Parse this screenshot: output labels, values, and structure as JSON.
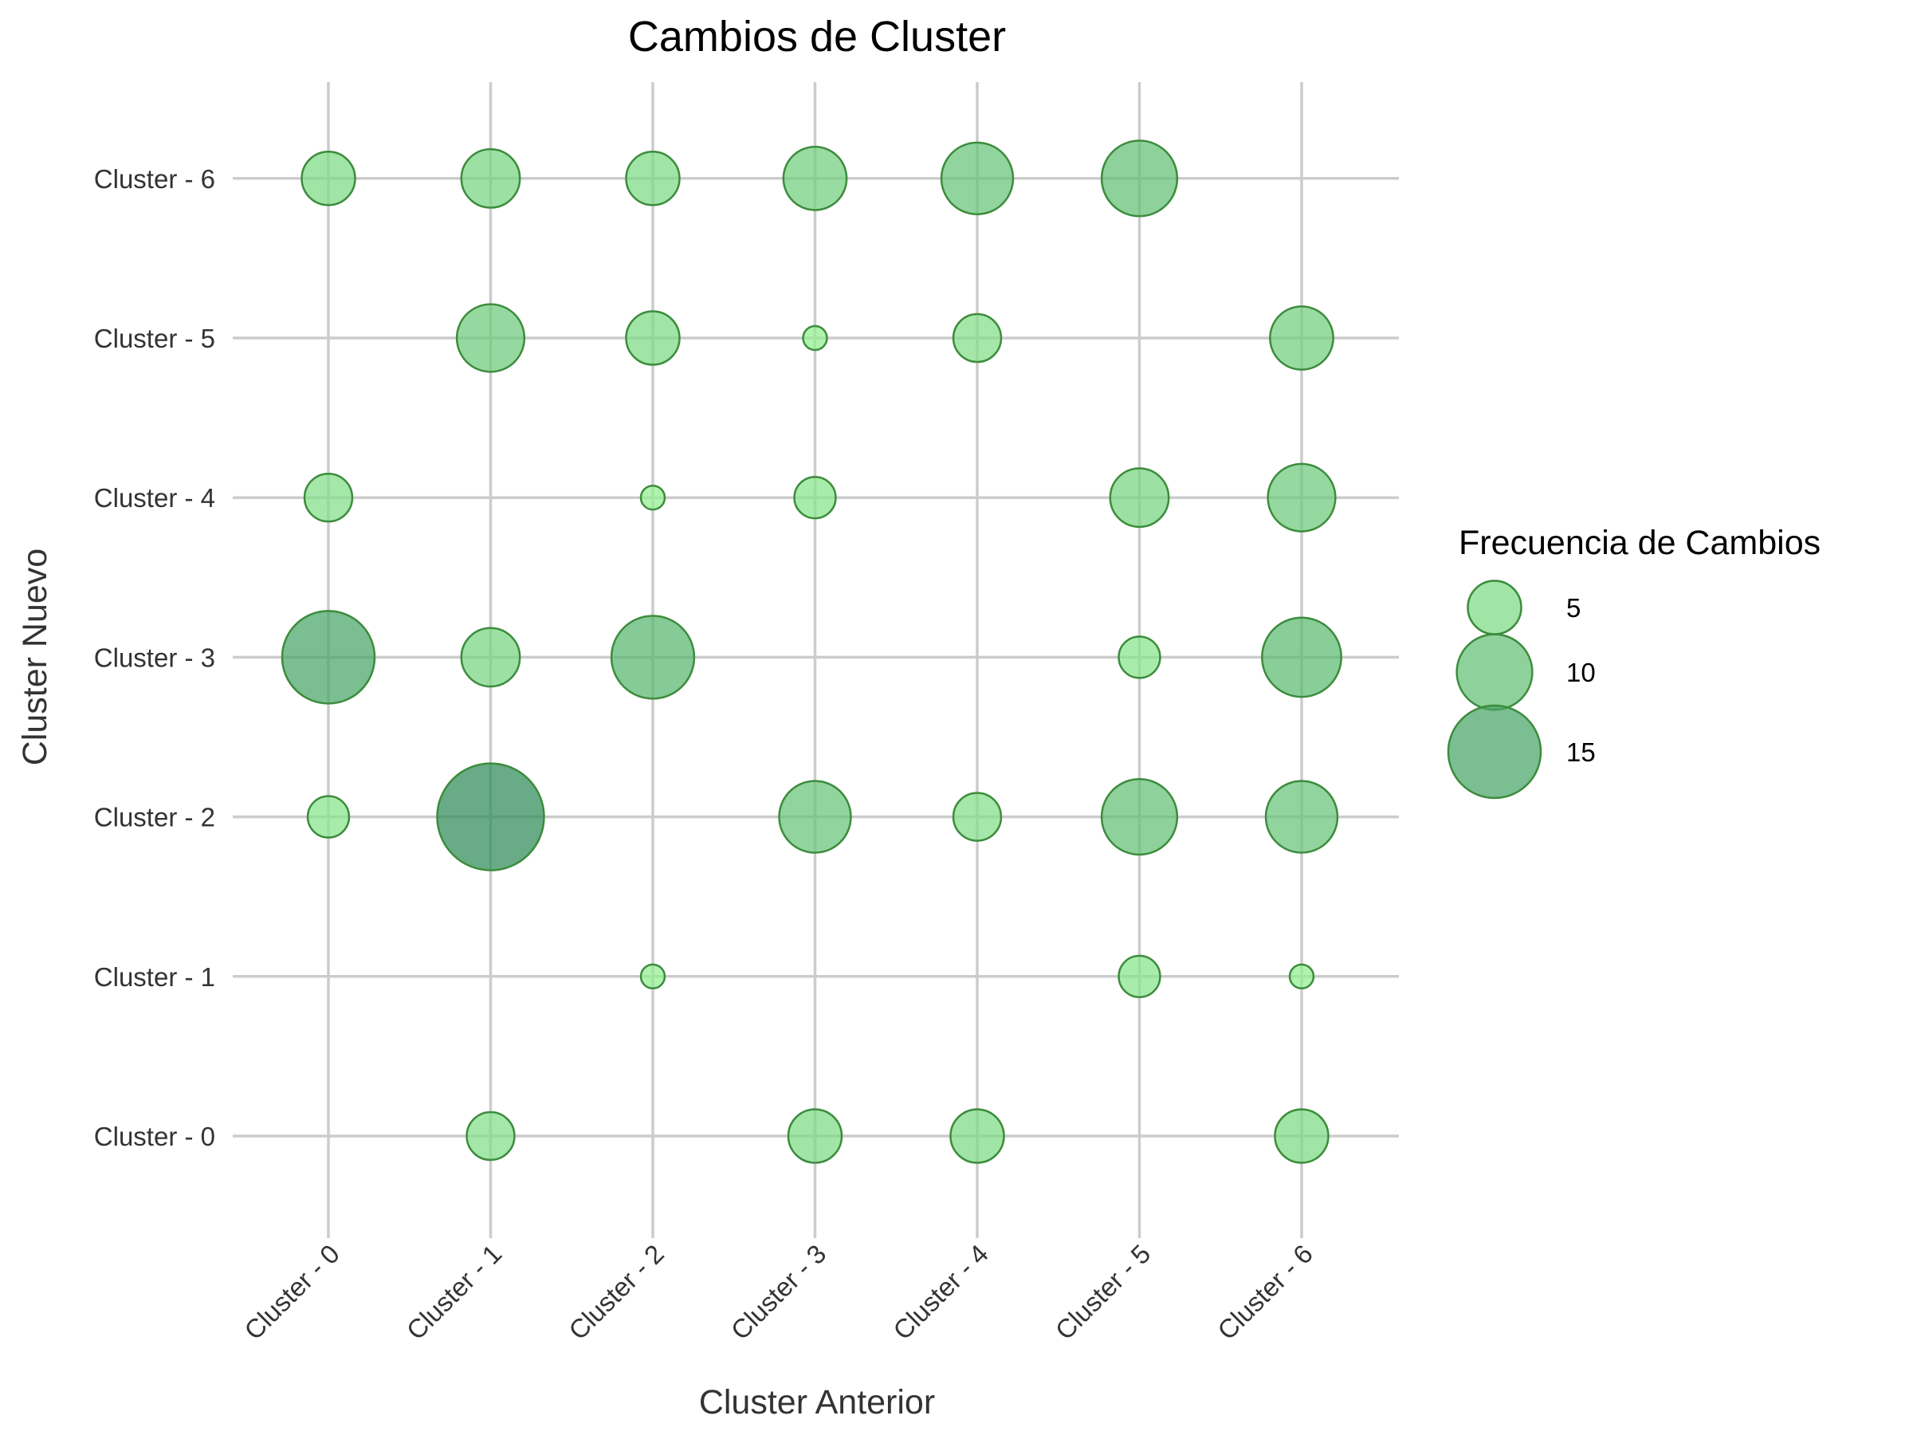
{
  "chart_data": {
    "type": "scatter",
    "title": "Cambios de Cluster",
    "xlabel": "Cluster Anterior",
    "ylabel": "Cluster Nuevo",
    "x_categories": [
      "Cluster - 0",
      "Cluster - 1",
      "Cluster - 2",
      "Cluster - 3",
      "Cluster - 4",
      "Cluster - 5",
      "Cluster - 6"
    ],
    "y_categories": [
      "Cluster - 0",
      "Cluster - 1",
      "Cluster - 2",
      "Cluster - 3",
      "Cluster - 4",
      "Cluster - 5",
      "Cluster - 6"
    ],
    "size_legend": {
      "title": "Frecuencia de Cambios",
      "placement": "right",
      "entries": [
        {
          "value": 5,
          "label": "5"
        },
        {
          "value": 10,
          "label": "10"
        },
        {
          "value": 15,
          "label": "15"
        }
      ]
    },
    "points": [
      {
        "x": "Cluster - 0",
        "y": "Cluster - 6",
        "size": 5
      },
      {
        "x": "Cluster - 1",
        "y": "Cluster - 6",
        "size": 6
      },
      {
        "x": "Cluster - 2",
        "y": "Cluster - 6",
        "size": 5
      },
      {
        "x": "Cluster - 3",
        "y": "Cluster - 6",
        "size": 7
      },
      {
        "x": "Cluster - 4",
        "y": "Cluster - 6",
        "size": 9
      },
      {
        "x": "Cluster - 5",
        "y": "Cluster - 6",
        "size": 10
      },
      {
        "x": "Cluster - 1",
        "y": "Cluster - 5",
        "size": 8
      },
      {
        "x": "Cluster - 2",
        "y": "Cluster - 5",
        "size": 5
      },
      {
        "x": "Cluster - 3",
        "y": "Cluster - 5",
        "size": 1
      },
      {
        "x": "Cluster - 4",
        "y": "Cluster - 5",
        "size": 4
      },
      {
        "x": "Cluster - 6",
        "y": "Cluster - 5",
        "size": 7
      },
      {
        "x": "Cluster - 0",
        "y": "Cluster - 4",
        "size": 4
      },
      {
        "x": "Cluster - 2",
        "y": "Cluster - 4",
        "size": 1
      },
      {
        "x": "Cluster - 3",
        "y": "Cluster - 4",
        "size": 3
      },
      {
        "x": "Cluster - 5",
        "y": "Cluster - 4",
        "size": 6
      },
      {
        "x": "Cluster - 6",
        "y": "Cluster - 4",
        "size": 8
      },
      {
        "x": "Cluster - 0",
        "y": "Cluster - 3",
        "size": 15
      },
      {
        "x": "Cluster - 1",
        "y": "Cluster - 3",
        "size": 6
      },
      {
        "x": "Cluster - 2",
        "y": "Cluster - 3",
        "size": 12
      },
      {
        "x": "Cluster - 5",
        "y": "Cluster - 3",
        "size": 3
      },
      {
        "x": "Cluster - 6",
        "y": "Cluster - 3",
        "size": 11
      },
      {
        "x": "Cluster - 0",
        "y": "Cluster - 2",
        "size": 3
      },
      {
        "x": "Cluster - 1",
        "y": "Cluster - 2",
        "size": 20
      },
      {
        "x": "Cluster - 3",
        "y": "Cluster - 2",
        "size": 9
      },
      {
        "x": "Cluster - 4",
        "y": "Cluster - 2",
        "size": 4
      },
      {
        "x": "Cluster - 5",
        "y": "Cluster - 2",
        "size": 10
      },
      {
        "x": "Cluster - 6",
        "y": "Cluster - 2",
        "size": 9
      },
      {
        "x": "Cluster - 2",
        "y": "Cluster - 1",
        "size": 1
      },
      {
        "x": "Cluster - 5",
        "y": "Cluster - 1",
        "size": 3
      },
      {
        "x": "Cluster - 6",
        "y": "Cluster - 1",
        "size": 1
      },
      {
        "x": "Cluster - 1",
        "y": "Cluster - 0",
        "size": 4
      },
      {
        "x": "Cluster - 3",
        "y": "Cluster - 0",
        "size": 5
      },
      {
        "x": "Cluster - 4",
        "y": "Cluster - 0",
        "size": 5
      },
      {
        "x": "Cluster - 6",
        "y": "Cluster - 0",
        "size": 5
      }
    ],
    "grid": true,
    "colors": {
      "low_fill": "#90ee90",
      "high_fill": "#2e8b57",
      "bubble_stroke": "#3c8c3c",
      "grid": "#cccccc",
      "text": "#333333"
    }
  }
}
